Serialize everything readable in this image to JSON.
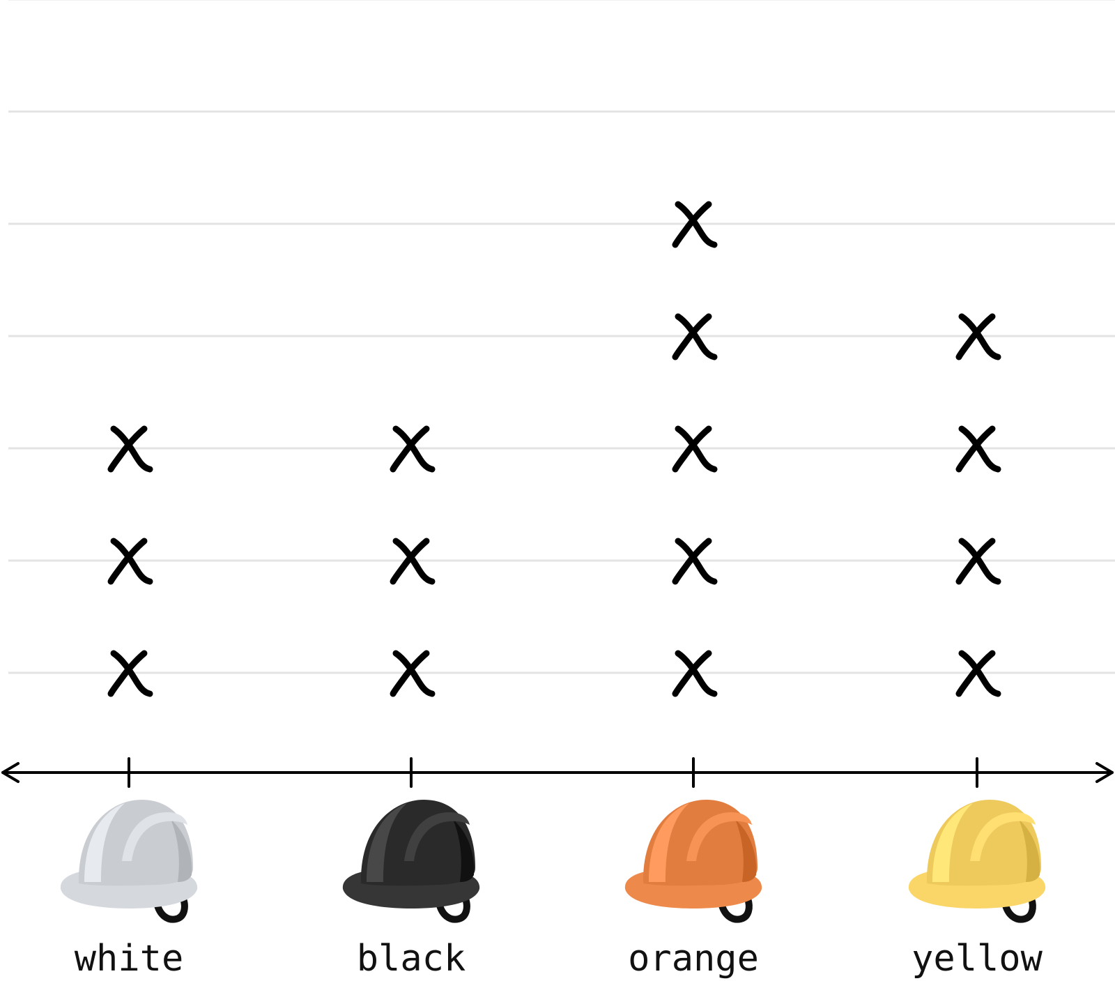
{
  "chart_data": {
    "type": "scatter",
    "subtype": "line plot (dot plot with X marks)",
    "title": "",
    "xlabel": "",
    "ylabel": "",
    "categories": [
      "white",
      "black",
      "orange",
      "yellow"
    ],
    "values": [
      3,
      3,
      5,
      4
    ],
    "ylim": [
      0,
      7
    ],
    "grid": true,
    "legend": "none",
    "marker": "X",
    "category_icons": [
      {
        "category": "white",
        "icon": "hard-hat-icon",
        "color": "#c9ccd1"
      },
      {
        "category": "black",
        "icon": "hard-hat-icon",
        "color": "#2a2a2a"
      },
      {
        "category": "orange",
        "icon": "hard-hat-icon",
        "color": "#e27d40"
      },
      {
        "category": "yellow",
        "icon": "hard-hat-icon",
        "color": "#eec95c"
      }
    ]
  }
}
